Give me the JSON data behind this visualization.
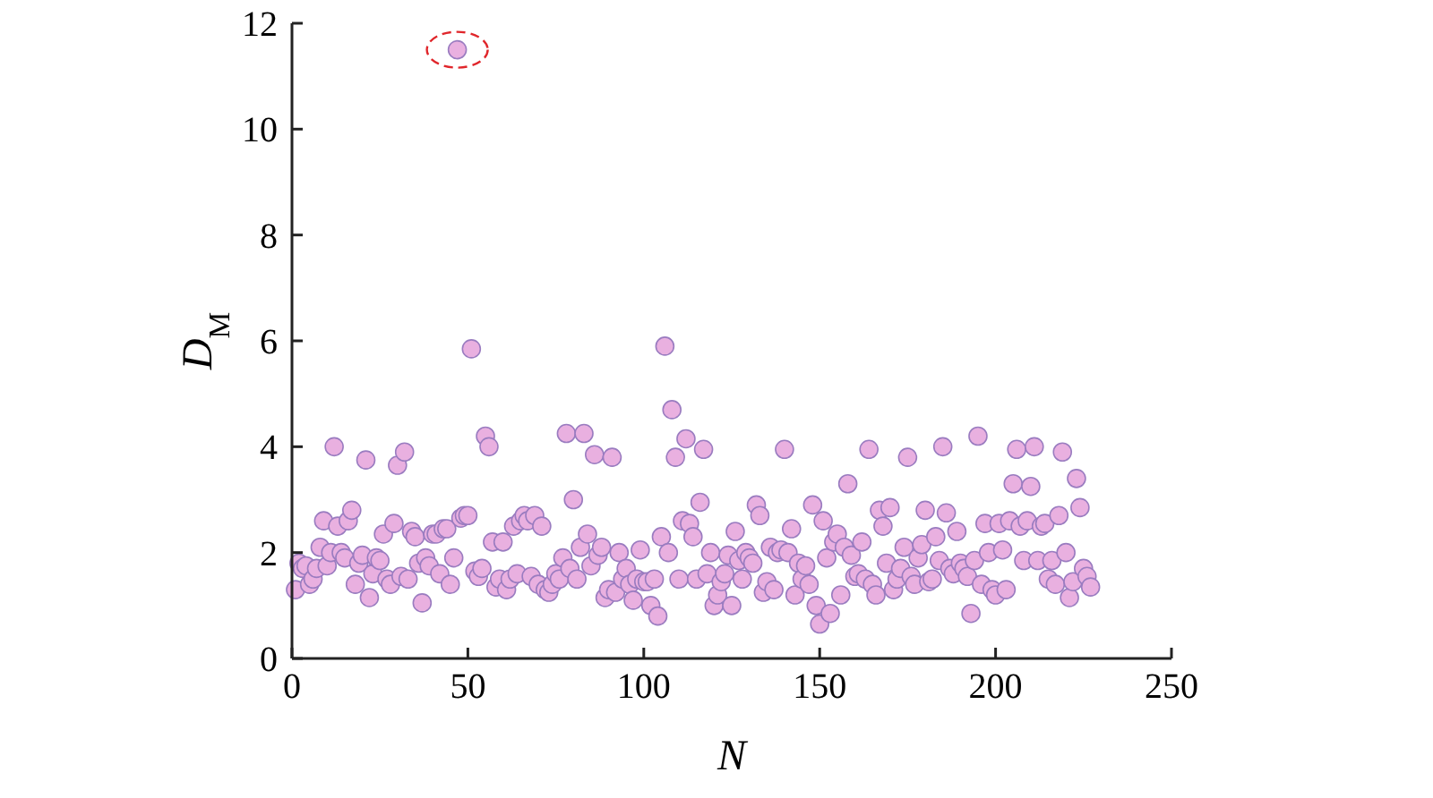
{
  "chart_data": {
    "type": "scatter",
    "xlabel": "N",
    "ylabel": "D$_{M}$",
    "xlim": [
      0,
      250
    ],
    "xticks": [
      0,
      50,
      100,
      150,
      200,
      250
    ],
    "ylim": [
      0,
      12
    ],
    "yticks": [
      0,
      2,
      4,
      6,
      8,
      10,
      12
    ],
    "marker": "circle",
    "grid": false,
    "series": [
      {
        "color": "#e9b0e0",
        "x": [
          1,
          2,
          3,
          4,
          5,
          6,
          7,
          8,
          9,
          10,
          11,
          12,
          13,
          14,
          15,
          16,
          17,
          18,
          19,
          20,
          21,
          22,
          23,
          24,
          25,
          26,
          27,
          28,
          29,
          30,
          31,
          32,
          33,
          34,
          35,
          36,
          37,
          38,
          39,
          40,
          41,
          42,
          43,
          44,
          45,
          46,
          47,
          48,
          49,
          50,
          51,
          52,
          53,
          54,
          55,
          56,
          57,
          58,
          59,
          60,
          61,
          62,
          63,
          64,
          65,
          66,
          67,
          68,
          69,
          70,
          71,
          72,
          73,
          74,
          75,
          76,
          77,
          78,
          79,
          80,
          81,
          82,
          83,
          84,
          85,
          86,
          87,
          88,
          89,
          90,
          91,
          92,
          93,
          94,
          95,
          96,
          97,
          98,
          99,
          100,
          101,
          102,
          103,
          104,
          105,
          106,
          107,
          108,
          109,
          110,
          111,
          112,
          113,
          114,
          115,
          116,
          117,
          118,
          119,
          120,
          121,
          122,
          123,
          124,
          125,
          126,
          127,
          128,
          129,
          130,
          131,
          132,
          133,
          134,
          135,
          136,
          137,
          138,
          139,
          140,
          141,
          142,
          143,
          144,
          145,
          146,
          147,
          148,
          149,
          150,
          151,
          152,
          153,
          154,
          155,
          156,
          157,
          158,
          159,
          160,
          161,
          162,
          163,
          164,
          165,
          166,
          167,
          168,
          169,
          170,
          171,
          172,
          173,
          174,
          175,
          176,
          177,
          178,
          179,
          180,
          181,
          182,
          183,
          184,
          185,
          186,
          187,
          188,
          189,
          190,
          191,
          192,
          193,
          194,
          195,
          196,
          197,
          198,
          199,
          200,
          201,
          202,
          203,
          204,
          205,
          206,
          207,
          208,
          209,
          210,
          211,
          212,
          213,
          214,
          215,
          216,
          217,
          218,
          219,
          220,
          221,
          222,
          223,
          224,
          225,
          226,
          227
        ],
        "values": [
          1.3,
          1.8,
          1.7,
          1.75,
          1.4,
          1.5,
          1.7,
          2.1,
          2.6,
          1.75,
          2.0,
          4.0,
          2.5,
          2.0,
          1.9,
          2.6,
          2.8,
          1.4,
          1.8,
          1.95,
          3.75,
          1.15,
          1.6,
          1.9,
          1.85,
          2.35,
          1.5,
          1.4,
          2.55,
          3.65,
          1.55,
          3.9,
          1.5,
          2.4,
          2.3,
          1.8,
          1.05,
          1.9,
          1.75,
          2.35,
          2.35,
          1.6,
          2.45,
          2.45,
          1.4,
          1.9,
          11.5,
          2.65,
          2.7,
          2.7,
          5.85,
          1.65,
          1.55,
          1.7,
          4.2,
          4.0,
          2.2,
          1.35,
          1.5,
          2.2,
          1.3,
          1.5,
          2.5,
          1.6,
          2.6,
          2.7,
          2.6,
          1.55,
          2.7,
          1.4,
          2.5,
          1.3,
          1.25,
          1.4,
          1.6,
          1.5,
          1.9,
          4.25,
          1.7,
          3.0,
          1.5,
          2.1,
          4.25,
          2.35,
          1.75,
          3.85,
          1.95,
          2.1,
          1.15,
          1.3,
          3.8,
          1.25,
          2.0,
          1.5,
          1.7,
          1.4,
          1.1,
          1.5,
          2.05,
          1.45,
          1.45,
          1.0,
          1.5,
          0.8,
          2.3,
          5.9,
          2.0,
          4.7,
          3.8,
          1.5,
          2.6,
          4.15,
          2.55,
          2.3,
          1.5,
          2.95,
          3.95,
          1.6,
          2.0,
          1.0,
          1.2,
          1.45,
          1.6,
          1.95,
          1.0,
          2.4,
          1.85,
          1.5,
          2.0,
          1.9,
          1.8,
          2.9,
          2.7,
          1.25,
          1.45,
          2.1,
          1.3,
          2.0,
          2.05,
          3.95,
          2.0,
          2.45,
          1.2,
          1.8,
          1.5,
          1.75,
          1.4,
          2.9,
          1.0,
          0.65,
          2.6,
          1.9,
          0.85,
          2.2,
          2.35,
          1.2,
          2.1,
          3.3,
          1.95,
          1.55,
          1.6,
          2.2,
          1.5,
          3.95,
          1.4,
          1.2,
          2.8,
          2.5,
          1.8,
          2.85,
          1.3,
          1.5,
          1.7,
          2.1,
          3.8,
          1.55,
          1.4,
          1.9,
          2.15,
          2.8,
          1.45,
          1.5,
          2.3,
          1.85,
          4.0,
          2.75,
          1.7,
          1.6,
          2.4,
          1.8,
          1.7,
          1.55,
          0.85,
          1.85,
          4.2,
          1.4,
          2.55,
          2.0,
          1.3,
          1.2,
          2.55,
          2.05,
          1.3,
          2.6,
          3.3,
          3.95,
          2.5,
          1.85,
          2.6,
          3.25,
          4.0,
          1.85,
          2.5,
          2.55,
          1.5,
          1.85,
          1.4,
          2.7,
          3.9,
          2.0,
          1.15,
          1.45,
          3.4,
          2.85,
          1.7,
          1.55,
          1.35
        ]
      }
    ]
  }
}
